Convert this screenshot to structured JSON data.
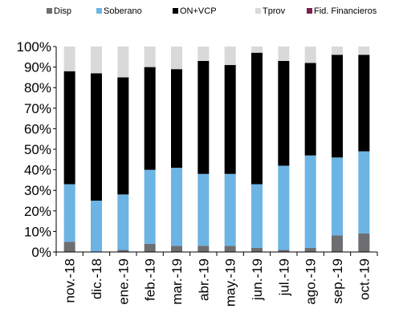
{
  "chart_data": {
    "type": "bar",
    "stacked": true,
    "title": "",
    "xlabel": "",
    "ylabel": "",
    "ylim": [
      0,
      100
    ],
    "yticks": [
      "0%",
      "10%",
      "20%",
      "30%",
      "40%",
      "50%",
      "60%",
      "70%",
      "80%",
      "90%",
      "100%"
    ],
    "grid": false,
    "legend_position": "top",
    "categories": [
      "nov.-18",
      "dic.-18",
      "ene.-19",
      "feb.-19",
      "mar.-19",
      "abr.-19",
      "may.-19",
      "jun.-19",
      "jul.-19",
      "ago.-19",
      "sep.-19",
      "oct.-19"
    ],
    "series": [
      {
        "name": "Disp",
        "color": "#6d6e71",
        "values": [
          5,
          0,
          1,
          4,
          3,
          3,
          3,
          2,
          1,
          2,
          8,
          9
        ]
      },
      {
        "name": "Soberano",
        "color": "#6cb4e4",
        "values": [
          28,
          25,
          27,
          36,
          38,
          35,
          35,
          31,
          41,
          45,
          38,
          40
        ]
      },
      {
        "name": "ON+VCP",
        "color": "#000000",
        "values": [
          55,
          62,
          57,
          50,
          48,
          55,
          53,
          64,
          51,
          45,
          50,
          47
        ]
      },
      {
        "name": "Tprov",
        "color": "#d9d9d9",
        "values": [
          12,
          13,
          15,
          10,
          11,
          7,
          9,
          3,
          7,
          8,
          4,
          4
        ]
      },
      {
        "name": "Fid. Financieros",
        "color": "#7b1f4e",
        "values": [
          0,
          0,
          0,
          0,
          0,
          0,
          0,
          0,
          0,
          0,
          0,
          0
        ]
      }
    ]
  }
}
